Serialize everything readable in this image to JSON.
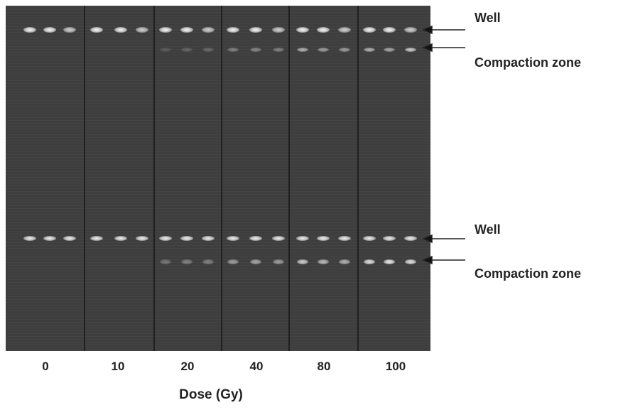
{
  "labels": {
    "well_top": "Well",
    "compaction_top": "Compaction zone",
    "well_bottom": "Well",
    "compaction_bottom": "Compaction zone",
    "x_axis": "Dose (Gy)"
  },
  "doses": [
    "0",
    "10",
    "20",
    "40",
    "80",
    "100"
  ],
  "colors": {
    "gel": "#3e3e3e",
    "divider": "#202020",
    "band": "#ffffff",
    "text": "#222222"
  }
}
